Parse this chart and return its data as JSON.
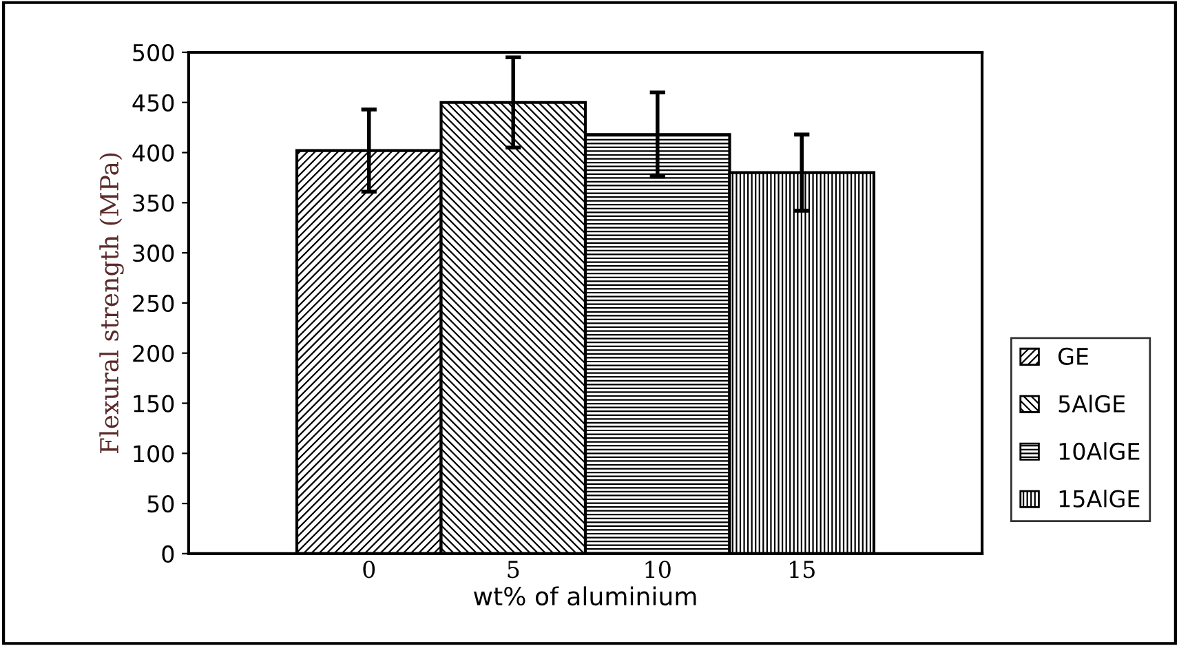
{
  "chart_data": {
    "type": "bar",
    "xlabel": "wt% of aluminium",
    "ylabel": "Flexural strength (MPa)",
    "categories": [
      "0",
      "5",
      "10",
      "15"
    ],
    "series": [
      {
        "name": "GE",
        "color": "#000000",
        "values": [
          402,
          null,
          null,
          null
        ],
        "errors": [
          41,
          null,
          null,
          null
        ]
      },
      {
        "name": "5AlGE",
        "color": "#000000",
        "values": [
          null,
          450,
          null,
          null
        ],
        "errors": [
          null,
          45,
          null,
          null
        ]
      },
      {
        "name": "10AlGE",
        "color": "#000000",
        "values": [
          null,
          null,
          418,
          null
        ],
        "errors": [
          null,
          null,
          42,
          null
        ]
      },
      {
        "name": "15AlGE",
        "color": "#000000",
        "values": [
          null,
          null,
          null,
          380
        ],
        "errors": [
          null,
          null,
          null,
          38
        ]
      }
    ],
    "ylim": [
      0,
      500
    ],
    "yticks": [
      0,
      50,
      100,
      150,
      200,
      250,
      300,
      350,
      400,
      450,
      500
    ],
    "grid": false,
    "legend": "right"
  }
}
